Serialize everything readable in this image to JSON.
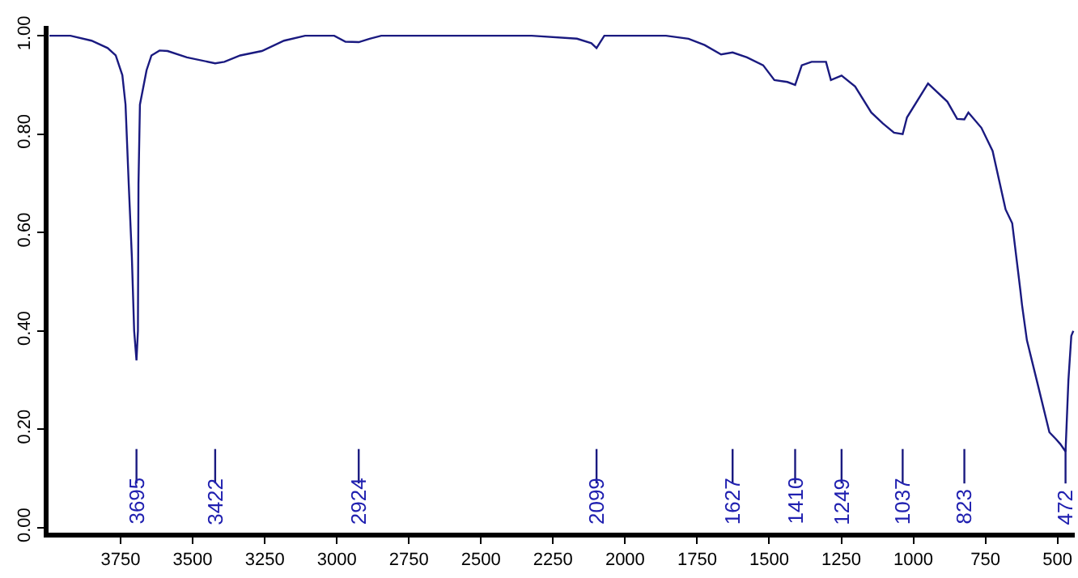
{
  "chart_data": {
    "type": "line",
    "x": [
      3997,
      3924,
      3851,
      3795,
      3767,
      3744,
      3733,
      3722,
      3711,
      3703,
      3695,
      3690,
      3688,
      3683,
      3660,
      3643,
      3615,
      3587,
      3520,
      3422,
      3390,
      3335,
      3260,
      3183,
      3110,
      3009,
      2970,
      2924,
      2886,
      2846,
      2324,
      2167,
      2117,
      2099,
      2072,
      1858,
      1780,
      1724,
      1667,
      1627,
      1577,
      1521,
      1482,
      1437,
      1410,
      1387,
      1353,
      1303,
      1286,
      1249,
      1202,
      1146,
      1106,
      1067,
      1037,
      1022,
      949,
      882,
      848,
      823,
      809,
      764,
      725,
      680,
      657,
      629,
      623,
      606,
      567,
      528,
      505,
      490,
      472,
      462,
      452,
      445
    ],
    "series": [
      {
        "color": "#1a1a80",
        "values": [
          1.0,
          1.0,
          0.99,
          0.975,
          0.96,
          0.92,
          0.86,
          0.7,
          0.55,
          0.4,
          0.34,
          0.4,
          0.7,
          0.86,
          0.93,
          0.96,
          0.97,
          0.969,
          0.956,
          0.944,
          0.947,
          0.96,
          0.969,
          0.99,
          1.0,
          1.0,
          0.988,
          0.987,
          0.994,
          1.0,
          1.0,
          0.994,
          0.985,
          0.975,
          1.0,
          1.0,
          0.994,
          0.981,
          0.962,
          0.966,
          0.956,
          0.94,
          0.91,
          0.906,
          0.9,
          0.94,
          0.947,
          0.947,
          0.91,
          0.919,
          0.897,
          0.844,
          0.822,
          0.803,
          0.8,
          0.834,
          0.903,
          0.866,
          0.831,
          0.83,
          0.844,
          0.813,
          0.766,
          0.647,
          0.619,
          0.484,
          0.453,
          0.381,
          0.288,
          0.194,
          0.18,
          0.17,
          0.155,
          0.3,
          0.39,
          0.4
        ]
      }
    ],
    "xlim": [
      4000,
      440
    ],
    "ylim": [
      -0.01,
      1.02
    ],
    "xticks": [
      3750,
      3500,
      3250,
      3000,
      2750,
      2500,
      2250,
      2000,
      1750,
      1500,
      1250,
      1000,
      750,
      500
    ],
    "yticks": [
      {
        "value": 0,
        "label": "0.00"
      },
      {
        "value": 0.2,
        "label": "0.20"
      },
      {
        "value": 0.4,
        "label": "0.40"
      },
      {
        "value": 0.6,
        "label": "0.60"
      },
      {
        "value": 0.8,
        "label": "0.80"
      },
      {
        "value": 1,
        "label": "1.00"
      }
    ],
    "marker": "none",
    "line_style": "solid",
    "annotations": [
      {
        "text": "3695",
        "x": 3695
      },
      {
        "text": "3422",
        "x": 3422
      },
      {
        "text": "2924",
        "x": 2924
      },
      {
        "text": "2099",
        "x": 2099
      },
      {
        "text": "1627",
        "x": 1627
      },
      {
        "text": "1410",
        "x": 1410
      },
      {
        "text": "1249",
        "x": 1249
      },
      {
        "text": "1037",
        "x": 1037
      },
      {
        "text": "823",
        "x": 823
      },
      {
        "text": "472",
        "x": 472
      }
    ]
  }
}
